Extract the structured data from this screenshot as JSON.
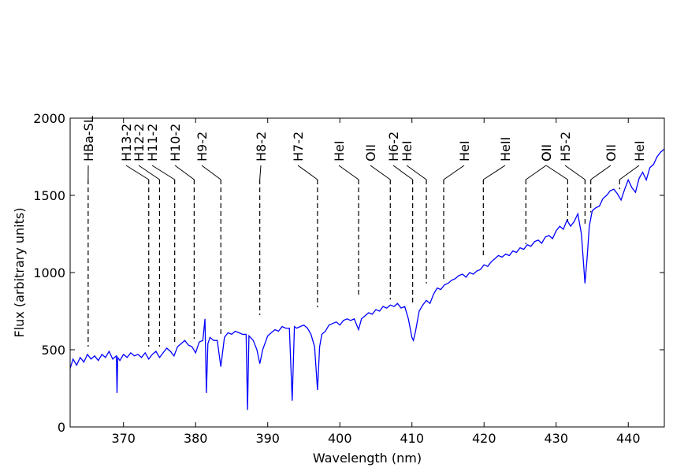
{
  "chart_data": {
    "type": "line",
    "x_label": "Wavelength (nm)",
    "y_label": "Flux (arbitrary units)",
    "xlim": [
      362.6,
      445
    ],
    "ylim": [
      0,
      2000
    ],
    "xticks": [
      370,
      380,
      390,
      400,
      410,
      420,
      430,
      440
    ],
    "yticks": [
      0,
      500,
      1000,
      1500,
      2000
    ],
    "series": [
      {
        "color": "#0000ff",
        "x": [
          362.6,
          363,
          363.5,
          364,
          364.5,
          365,
          365.5,
          366,
          366.5,
          367,
          367.5,
          368,
          368.5,
          369,
          369.1,
          369.2,
          369.5,
          370,
          370.5,
          371,
          371.5,
          372,
          372.5,
          373,
          373.5,
          374,
          374.5,
          375,
          375.5,
          376,
          376.5,
          377,
          377.5,
          378,
          378.5,
          379,
          379.5,
          380,
          380.5,
          381,
          381.3,
          381.5,
          381.7,
          382,
          382.5,
          383,
          383.5,
          384,
          384.5,
          385,
          385.5,
          386,
          386.5,
          387,
          387.2,
          387.4,
          388,
          388.5,
          388.9,
          389.3,
          390,
          390.5,
          391,
          391.5,
          392,
          392.5,
          393,
          393.4,
          393.7,
          394,
          394.5,
          395,
          395.5,
          396,
          396.5,
          396.9,
          397.2,
          397.5,
          398,
          398.5,
          399,
          399.5,
          400,
          400.5,
          401,
          401.5,
          402,
          402.6,
          403,
          403.5,
          404,
          404.5,
          405,
          405.5,
          406,
          406.5,
          407,
          407.5,
          408,
          408.5,
          409,
          409.5,
          410,
          410.2,
          410.5,
          411,
          411.5,
          412,
          412.5,
          413,
          413.5,
          414,
          414.5,
          415,
          415.5,
          416,
          416.5,
          417,
          417.5,
          418,
          418.5,
          419,
          419.5,
          420,
          420.5,
          421,
          421.5,
          422,
          422.5,
          423,
          423.5,
          424,
          424.5,
          425,
          425.5,
          426,
          426.5,
          427,
          427.5,
          428,
          428.5,
          429,
          429.5,
          430,
          430.5,
          431,
          431.5,
          432,
          432.5,
          433,
          433.5,
          434,
          434.3,
          434.6,
          435,
          435.5,
          436,
          436.5,
          437,
          437.5,
          438,
          438.5,
          439,
          439.5,
          440,
          440.5,
          441,
          441.5,
          442,
          442.5,
          443,
          443.5,
          444,
          444.5,
          445
        ],
        "values": [
          380,
          440,
          400,
          450,
          420,
          470,
          440,
          460,
          430,
          470,
          450,
          490,
          440,
          460,
          220,
          450,
          430,
          470,
          450,
          480,
          460,
          470,
          450,
          480,
          440,
          470,
          490,
          450,
          480,
          510,
          490,
          460,
          520,
          540,
          560,
          530,
          520,
          480,
          550,
          560,
          700,
          220,
          540,
          580,
          560,
          560,
          390,
          580,
          610,
          600,
          620,
          610,
          600,
          600,
          110,
          590,
          560,
          500,
          410,
          500,
          590,
          610,
          630,
          620,
          650,
          640,
          640,
          170,
          650,
          640,
          650,
          660,
          640,
          600,
          520,
          240,
          520,
          600,
          620,
          660,
          670,
          680,
          660,
          690,
          700,
          690,
          700,
          630,
          700,
          720,
          740,
          730,
          760,
          750,
          780,
          770,
          790,
          780,
          800,
          770,
          780,
          700,
          580,
          560,
          620,
          750,
          790,
          820,
          800,
          860,
          900,
          890,
          920,
          930,
          950,
          960,
          980,
          990,
          970,
          1000,
          990,
          1010,
          1020,
          1050,
          1040,
          1070,
          1090,
          1110,
          1100,
          1120,
          1110,
          1140,
          1130,
          1160,
          1150,
          1180,
          1170,
          1200,
          1210,
          1190,
          1230,
          1240,
          1220,
          1270,
          1300,
          1280,
          1340,
          1300,
          1330,
          1380,
          1250,
          930,
          1100,
          1300,
          1400,
          1420,
          1430,
          1480,
          1500,
          1530,
          1540,
          1510,
          1470,
          1540,
          1600,
          1550,
          1520,
          1610,
          1650,
          1600,
          1680,
          1700,
          1750,
          1780,
          1800
        ]
      }
    ],
    "annotations": [
      {
        "label": "HBa-SL",
        "x": 365.1,
        "y": 520
      },
      {
        "label": "H13-2",
        "x": 373.5,
        "y": 520
      },
      {
        "label": "H12-2",
        "x": 375.0,
        "y": 520
      },
      {
        "label": "H11-2",
        "x": 377.1,
        "y": 530
      },
      {
        "label": "H10-2",
        "x": 379.8,
        "y": 570
      },
      {
        "label": "H9-2",
        "x": 383.5,
        "y": 600
      },
      {
        "label": "H8-2",
        "x": 388.9,
        "y": 725
      },
      {
        "label": "H7-2",
        "x": 396.9,
        "y": 775
      },
      {
        "label": "HeI",
        "x": 402.6,
        "y": 850
      },
      {
        "label": "OII",
        "x": 407.0,
        "y": 825
      },
      {
        "label": "H6-2",
        "x": 410.1,
        "y": 800
      },
      {
        "label": "HeI",
        "x": 412.0,
        "y": 930
      },
      {
        "label": "HeI",
        "x": 414.4,
        "y": 950
      },
      {
        "label": "HeII",
        "x": 419.9,
        "y": 1105
      },
      {
        "label": "OII",
        "x": 425.8,
        "y": 1185
      },
      {
        "label": "OII",
        "x": 431.6,
        "y": 1335
      },
      {
        "label": "H5-2",
        "x": 434.0,
        "y": 1310
      },
      {
        "label": "OII",
        "x": 434.8,
        "y": 1390
      },
      {
        "label": "HeI",
        "x": 438.8,
        "y": 1540
      }
    ]
  }
}
